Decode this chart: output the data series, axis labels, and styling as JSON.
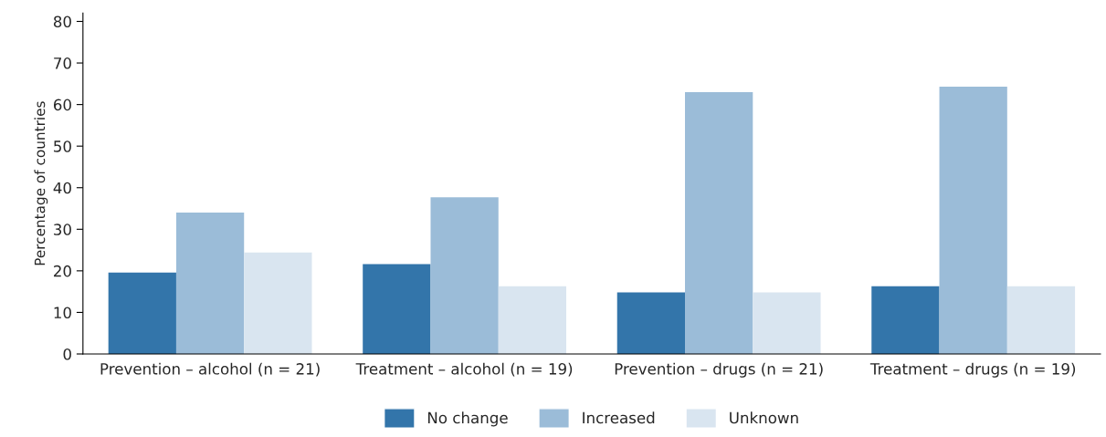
{
  "chart_data": {
    "type": "bar",
    "ylabel": "Percentage of countries",
    "categories": [
      "Prevention – alcohol (n = 21)",
      "Treatment – alcohol (n = 19)",
      "Prevention – drugs (n = 21)",
      "Treatment – drugs (n = 19)"
    ],
    "series": [
      {
        "name": "No change",
        "color": "#3375aa",
        "values": [
          19.6,
          21.6,
          14.8,
          16.3
        ]
      },
      {
        "name": "Increased",
        "color": "#9bbcd8",
        "values": [
          34.0,
          37.7,
          63.0,
          64.3
        ]
      },
      {
        "name": "Unknown",
        "color": "#d9e5f0",
        "values": [
          24.4,
          16.3,
          14.8,
          16.3
        ]
      }
    ],
    "ylim": [
      0,
      82
    ],
    "yticks": [
      0,
      10,
      20,
      30,
      40,
      50,
      60,
      70,
      80
    ],
    "grid": false,
    "legend": "bottom"
  }
}
